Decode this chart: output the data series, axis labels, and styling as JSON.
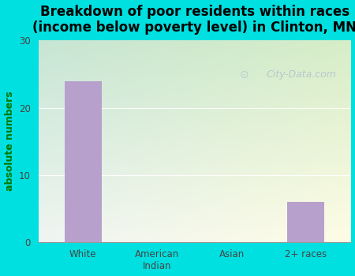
{
  "categories": [
    "White",
    "American\nIndian",
    "Asian",
    "2+ races"
  ],
  "values": [
    24,
    0,
    0,
    6
  ],
  "bar_color": "#b8a0cc",
  "title": "Breakdown of poor residents within races\n(income below poverty level) in Clinton, MN",
  "ylabel": "absolute numbers",
  "ylim": [
    0,
    30
  ],
  "yticks": [
    0,
    10,
    20,
    30
  ],
  "outer_bg": "#00e0e0",
  "title_fontsize": 12,
  "ylabel_fontsize": 9,
  "bar_width": 0.5,
  "watermark": "City-Data.com",
  "grid_color": "#ccddcc",
  "tick_color": "#444444"
}
